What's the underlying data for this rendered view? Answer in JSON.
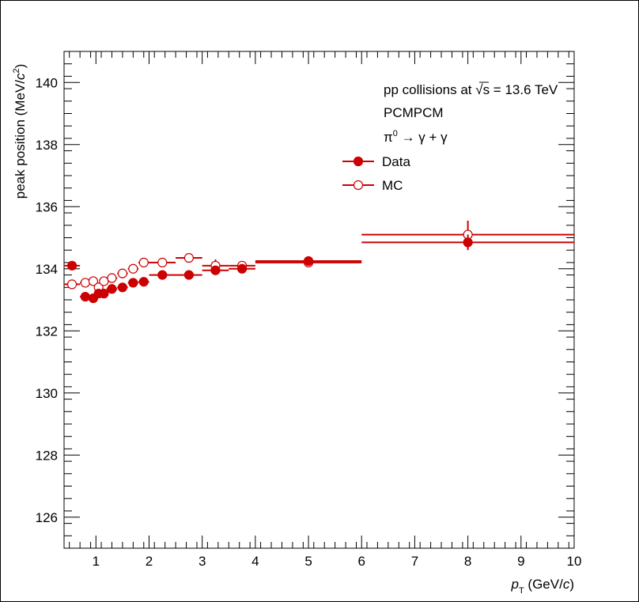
{
  "chart_data": {
    "type": "scatter",
    "xlabel": {
      "italic": "p",
      "sub": "T",
      "rest": " (GeV/",
      "unit_italic": "c",
      "close": ")"
    },
    "ylabel": {
      "main": "peak position (MeV/",
      "unit_italic": "c",
      "sup": "2",
      "close": ")"
    },
    "xlim": [
      0.4,
      10
    ],
    "ylim": [
      125,
      141
    ],
    "x_ticks": [
      1,
      2,
      3,
      4,
      5,
      6,
      7,
      8,
      9,
      10
    ],
    "y_ticks": [
      126,
      128,
      130,
      132,
      134,
      136,
      138,
      140
    ],
    "annotations": {
      "line1_a": "pp collisions at ",
      "line1_sqrt": "√",
      "line1_s": "s",
      "line1_b": " = 13.6 TeV",
      "line2": "PCMPCM",
      "line3_pi": "π",
      "line3_sup": "0",
      "line3_rest": " → γ + γ"
    },
    "legend": {
      "position": "top-right",
      "data_label": "Data",
      "mc_label": "MC"
    },
    "series": [
      {
        "name": "Data",
        "marker": "filled-circle",
        "color": "#cc0000",
        "points": [
          {
            "x": 0.55,
            "y": 134.1,
            "xerr": 0.15,
            "yerr": 0.05
          },
          {
            "x": 0.8,
            "y": 133.1,
            "xerr": 0.1,
            "yerr": 0.05
          },
          {
            "x": 0.95,
            "y": 133.05,
            "xerr": 0.05,
            "yerr": 0.05
          },
          {
            "x": 1.05,
            "y": 133.2,
            "xerr": 0.05,
            "yerr": 0.05
          },
          {
            "x": 1.15,
            "y": 133.2,
            "xerr": 0.05,
            "yerr": 0.05
          },
          {
            "x": 1.3,
            "y": 133.35,
            "xerr": 0.1,
            "yerr": 0.05
          },
          {
            "x": 1.5,
            "y": 133.4,
            "xerr": 0.1,
            "yerr": 0.05
          },
          {
            "x": 1.7,
            "y": 133.55,
            "xerr": 0.1,
            "yerr": 0.05
          },
          {
            "x": 1.9,
            "y": 133.58,
            "xerr": 0.1,
            "yerr": 0.05
          },
          {
            "x": 2.25,
            "y": 133.8,
            "xerr": 0.25,
            "yerr": 0.05
          },
          {
            "x": 2.75,
            "y": 133.8,
            "xerr": 0.25,
            "yerr": 0.05
          },
          {
            "x": 3.25,
            "y": 133.95,
            "xerr": 0.25,
            "yerr": 0.1
          },
          {
            "x": 3.75,
            "y": 134.0,
            "xerr": 0.25,
            "yerr": 0.1
          },
          {
            "x": 5,
            "y": 134.25,
            "xerr": 1,
            "yerr": 0.15
          },
          {
            "x": 8,
            "y": 134.85,
            "xerr": 2,
            "yerr": 0.25
          }
        ]
      },
      {
        "name": "MC",
        "marker": "open-circle",
        "color": "#cc0000",
        "points": [
          {
            "x": 0.55,
            "y": 133.5,
            "xerr": 0.15,
            "yerr": 0.05
          },
          {
            "x": 0.8,
            "y": 133.55,
            "xerr": 0.1,
            "yerr": 0.05
          },
          {
            "x": 0.95,
            "y": 133.6,
            "xerr": 0.05,
            "yerr": 0.05
          },
          {
            "x": 1.05,
            "y": 133.4,
            "xerr": 0.05,
            "yerr": 0.05
          },
          {
            "x": 1.15,
            "y": 133.6,
            "xerr": 0.05,
            "yerr": 0.05
          },
          {
            "x": 1.3,
            "y": 133.7,
            "xerr": 0.1,
            "yerr": 0.05
          },
          {
            "x": 1.5,
            "y": 133.85,
            "xerr": 0.1,
            "yerr": 0.05
          },
          {
            "x": 1.7,
            "y": 134.0,
            "xerr": 0.1,
            "yerr": 0.05
          },
          {
            "x": 1.9,
            "y": 134.2,
            "xerr": 0.1,
            "yerr": 0.05
          },
          {
            "x": 2.25,
            "y": 134.2,
            "xerr": 0.25,
            "yerr": 0.05
          },
          {
            "x": 2.75,
            "y": 134.35,
            "xerr": 0.25,
            "yerr": 0.05
          },
          {
            "x": 3.25,
            "y": 134.1,
            "xerr": 0.25,
            "yerr": 0.2
          },
          {
            "x": 3.75,
            "y": 134.1,
            "xerr": 0.25,
            "yerr": 0.15
          },
          {
            "x": 5,
            "y": 134.2,
            "xerr": 1,
            "yerr": 0.15
          },
          {
            "x": 8,
            "y": 135.1,
            "xerr": 2,
            "yerr": 0.45
          }
        ]
      }
    ]
  }
}
